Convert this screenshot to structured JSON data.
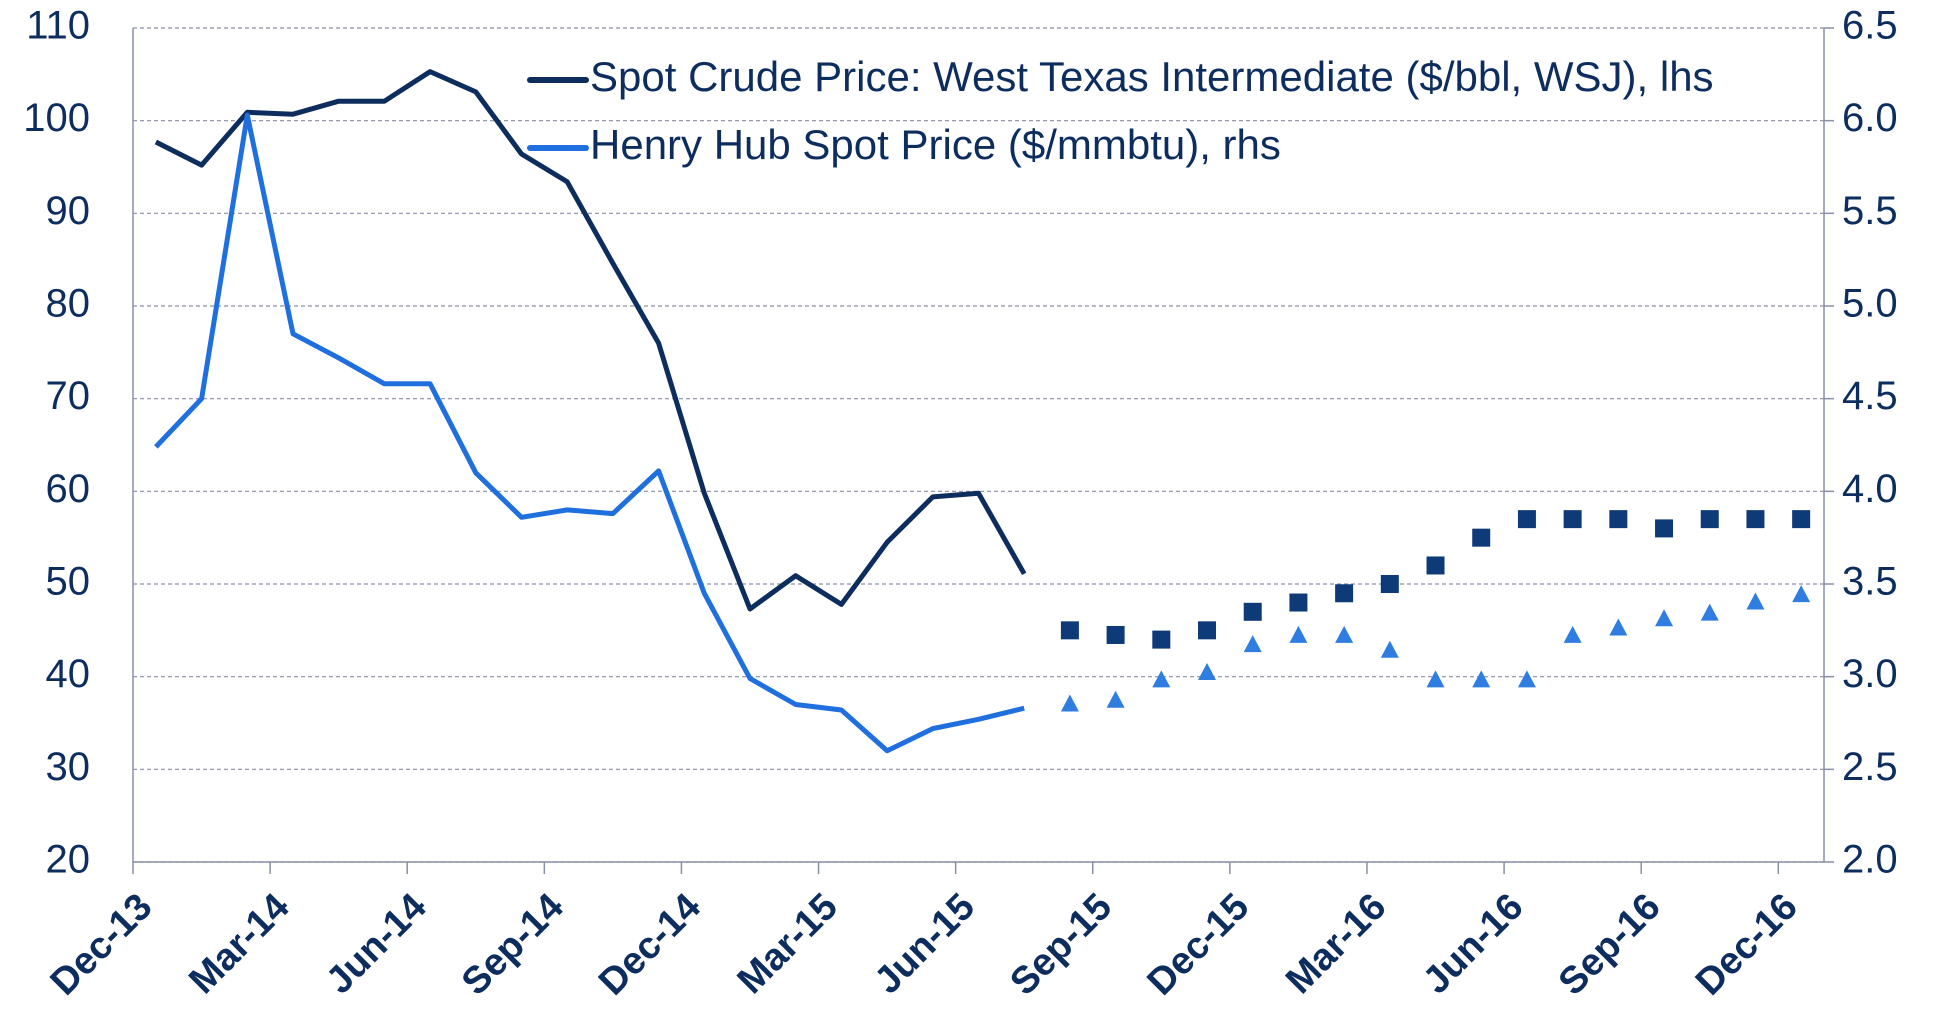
{
  "chart_data": {
    "type": "line",
    "categories": [
      "Dec-13",
      null,
      null,
      "Mar-14",
      null,
      null,
      "Jun-14",
      null,
      null,
      "Sep-14",
      null,
      null,
      "Dec-14",
      null,
      null,
      "Mar-15",
      null,
      null,
      "Jun-15",
      null,
      null,
      "Sep-15",
      null,
      null,
      "Dec-15",
      null,
      null,
      "Mar-16",
      null,
      null,
      "Jun-16",
      null,
      null,
      "Sep-16",
      null,
      null,
      "Dec-16"
    ],
    "series": [
      {
        "name": "Spot Crude Price: West Texas Intermediate ($/bbl, WSJ), lhs",
        "color": "#0e2d5f",
        "axis": "y",
        "values": [
          97.7,
          95.2,
          100.9,
          100.7,
          102.1,
          102.1,
          105.3,
          103.1,
          96.4,
          93.4,
          84.6,
          76.0,
          59.8,
          47.3,
          50.9,
          47.8,
          54.5,
          59.4,
          59.8,
          51.1,
          null,
          null,
          null,
          null,
          null,
          null,
          null,
          null,
          null,
          null,
          null,
          null,
          null,
          null,
          null,
          null,
          null
        ]
      },
      {
        "name": "Henry Hub Spot Price ($/mmbtu), rhs",
        "color": "#1f6fde",
        "axis": "y2",
        "values": [
          4.24,
          4.5,
          6.03,
          4.85,
          4.72,
          4.58,
          4.58,
          4.1,
          3.86,
          3.9,
          3.88,
          4.11,
          3.45,
          2.99,
          2.85,
          2.82,
          2.6,
          2.72,
          2.77,
          2.83,
          null,
          null,
          null,
          null,
          null,
          null,
          null,
          null,
          null,
          null,
          null,
          null,
          null,
          null,
          null,
          null,
          null
        ]
      },
      {
        "marker": "square",
        "color": "#0e3a78",
        "axis": "y",
        "values": [
          null,
          null,
          null,
          null,
          null,
          null,
          null,
          null,
          null,
          null,
          null,
          null,
          null,
          null,
          null,
          null,
          null,
          null,
          null,
          null,
          45,
          44.5,
          44,
          45,
          47,
          48,
          49,
          50,
          52,
          55,
          57,
          57,
          57,
          56,
          57,
          57,
          57
        ]
      },
      {
        "marker": "triangle",
        "color": "#2f7de0",
        "axis": "y2",
        "values": [
          null,
          null,
          null,
          null,
          null,
          null,
          null,
          null,
          null,
          null,
          null,
          null,
          null,
          null,
          null,
          null,
          null,
          null,
          null,
          null,
          2.85,
          2.87,
          2.98,
          3.02,
          3.17,
          3.22,
          3.22,
          3.14,
          2.98,
          2.98,
          2.98,
          3.22,
          3.26,
          3.31,
          3.34,
          3.4,
          3.44
        ]
      }
    ],
    "ylim": [
      20,
      110
    ],
    "yticks": [
      20,
      30,
      40,
      50,
      60,
      70,
      80,
      90,
      100,
      110
    ],
    "y2lim": [
      2.0,
      6.5
    ],
    "y2ticks": [
      {
        "value": 2.0,
        "label": "2.0"
      },
      2.5,
      {
        "value": 3.0,
        "label": "3.0"
      },
      3.5,
      {
        "value": 4.0,
        "label": "4.0"
      },
      4.5,
      {
        "value": 5.0,
        "label": "5.0"
      },
      5.5,
      {
        "value": 6.0,
        "label": "6.0"
      },
      6.5
    ],
    "grid": true,
    "legend": "top"
  }
}
